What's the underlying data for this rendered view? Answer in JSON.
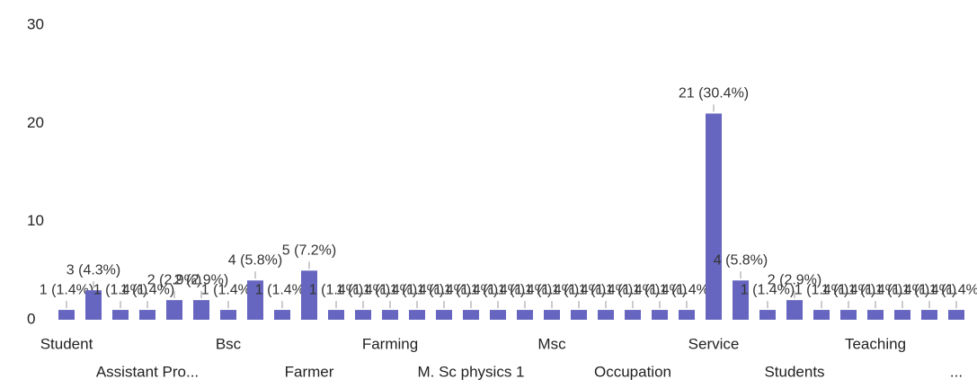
{
  "chart_data": {
    "type": "bar",
    "categories": [
      "Student",
      null,
      null,
      "Assistant Pro...",
      null,
      null,
      "Bsc",
      null,
      null,
      "Farmer",
      null,
      null,
      "Farming",
      null,
      null,
      "M. Sc physics 1",
      null,
      null,
      "Msc",
      null,
      null,
      "Occupation",
      null,
      null,
      "Service",
      null,
      null,
      "Students",
      null,
      null,
      "Teaching",
      null,
      null,
      "..."
    ],
    "values": [
      1,
      3,
      1,
      1,
      2,
      2,
      1,
      4,
      1,
      5,
      1,
      1,
      1,
      1,
      1,
      1,
      1,
      1,
      1,
      1,
      1,
      1,
      1,
      1,
      21,
      4,
      1,
      2,
      1,
      1,
      1,
      1,
      1,
      1
    ],
    "value_labels": [
      "1 (1.4%)",
      "3 (4.3%)",
      "1 (1.4%)",
      "1 (1.4%)",
      "2 (2.9%)",
      "2 (2.9%)",
      "1 (1.4%)",
      "4 (5.8%)",
      "1 (1.4%)",
      "5 (7.2%)",
      "1 (1.4%)",
      "1 (1.4%)",
      "1 (1.4%)",
      "1 (1.4%)",
      "1 (1.4%)",
      "1 (1.4%)",
      "1 (1.4%)",
      "1 (1.4%)",
      "1 (1.4%)",
      "1 (1.4%)",
      "1 (1.4%)",
      "1 (1.4%)",
      "1 (1.4%)",
      "1 (1.4%)",
      "21 (30.4%)",
      "4 (5.8%)",
      "1 (1.4%)",
      "2 (2.9%)",
      "1 (1.4%)",
      "1 (1.4%)",
      "1 (1.4%)",
      "1 (1.4%)",
      "1 (1.4%)",
      "1 (1.4%)"
    ],
    "color": "#6666c0",
    "ylim": [
      0,
      30
    ],
    "yticks": [
      0,
      10,
      20,
      30
    ],
    "grid": false
  }
}
